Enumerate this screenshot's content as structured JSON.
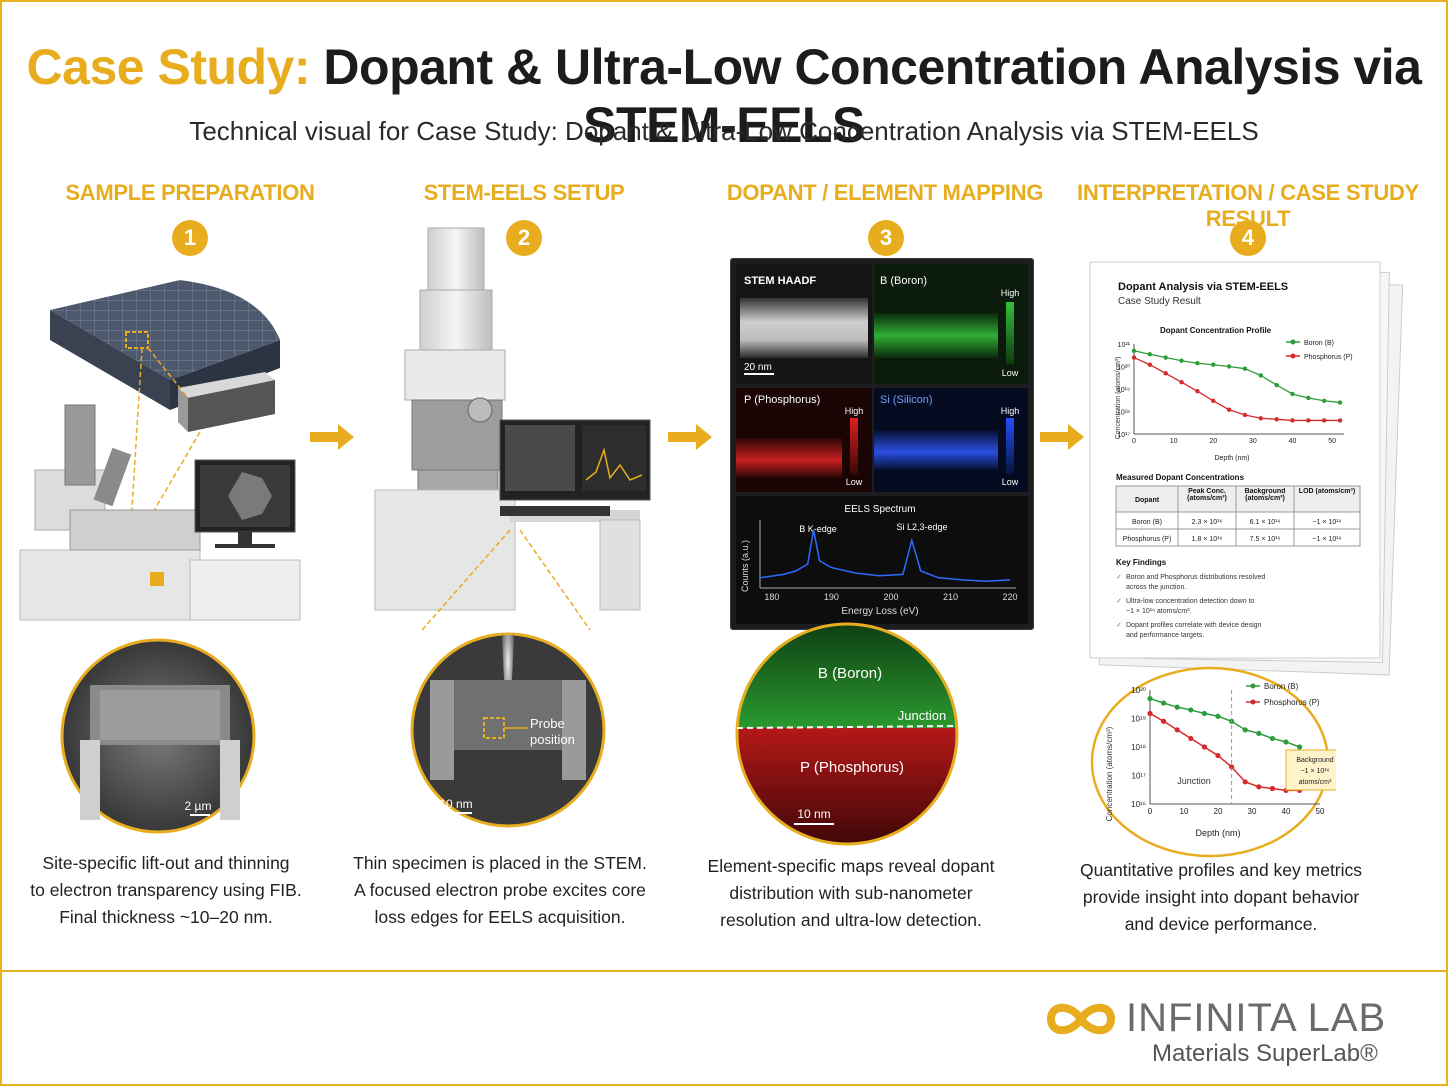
{
  "header": {
    "title_accent": "Case Study:",
    "title_rest": "Dopant & Ultra-Low Concentration Analysis via STEM-EELS",
    "subtitle": "Technical visual for Case Study: Dopant & Ultra-Low Concentration Analysis via STEM-EELS"
  },
  "steps": [
    {
      "number": "1",
      "heading": "SAMPLE PREPARATION",
      "scale_bar": "2 µm",
      "caption": [
        "Site-specific lift-out and thinning",
        "to electron transparency using FIB.",
        "Final thickness ~10–20 nm."
      ]
    },
    {
      "number": "2",
      "heading": "STEM-EELS SETUP",
      "scale_bar": "10 nm",
      "probe_label": [
        "Probe",
        "position"
      ],
      "caption": [
        "Thin specimen is placed in the STEM.",
        "A focused electron probe excites core",
        "loss edges for EELS acquisition."
      ]
    },
    {
      "number": "3",
      "heading": "DOPANT / ELEMENT MAPPING",
      "caption": [
        "Element-specific maps reveal dopant",
        "distribution with sub-nanometer",
        "resolution and ultra-low detection."
      ]
    },
    {
      "number": "4",
      "heading": "INTERPRETATION / CASE STUDY RESULT",
      "caption": [
        "Quantitative profiles and key metrics",
        "provide insight into dopant behavior",
        "and device performance."
      ]
    }
  ],
  "mapping": {
    "haadf_label": "STEM HAADF",
    "haadf_scale": "20 nm",
    "boron_label": "B (Boron)",
    "phos_label": "P (Phosphorus)",
    "silicon_label": "Si (Silicon)",
    "high": "High",
    "low": "Low",
    "spectrum_title": "EELS Spectrum",
    "spectrum_ylabel": "Counts (a.u.)",
    "spectrum_xlabel": "Energy Loss (eV)",
    "peak_b": "B K-edge",
    "peak_si": "Si L2,3-edge",
    "zoom_boron": "B (Boron)",
    "zoom_junction": "Junction",
    "zoom_phos": "P (Phosphorus)",
    "zoom_scale": "10 nm"
  },
  "report": {
    "title": "Dopant Analysis via STEM-EELS",
    "subtitle": "Case Study Result",
    "table_title": "Measured Dopant Concentrations",
    "table_headers": [
      "Dopant",
      "Peak Conc. (atoms/cm³)",
      "Background (atoms/cm³)",
      "LOD (atoms/cm³)"
    ],
    "table_rows": [
      [
        "Boron (B)",
        "2.3 × 10¹⁶",
        "6.1 × 10¹⁶",
        "~1 × 10¹⁶"
      ],
      [
        "Phosphorus (P)",
        "1.8 × 10¹⁶",
        "7.5 × 10¹⁶",
        "~1 × 10¹⁶"
      ]
    ],
    "findings_title": "Key Findings",
    "findings": [
      [
        "Boron and Phosphorus distributions resolved",
        "across the junction."
      ],
      [
        "Ultra-low concentration detection down to",
        "~1 × 10¹⁶ atoms/cm³."
      ],
      [
        "Dopant profiles correlate with device design",
        "and performance targets."
      ]
    ],
    "zoom_background_note": [
      "Background",
      "~1 × 10¹⁶",
      "atoms/cm³"
    ],
    "zoom_junction": "Junction"
  },
  "chart_data": [
    {
      "type": "line",
      "title": "Dopant Concentration Profile",
      "xlabel": "Depth (nm)",
      "ylabel": "Concentration (atoms/cm³)",
      "y_scale": "log",
      "xlim": [
        0,
        53
      ],
      "ylim": [
        1e+17,
        1e+21
      ],
      "xticks": [
        "0",
        "10",
        "20",
        "30",
        "40",
        "50"
      ],
      "yticks": [
        "10¹⁷",
        "10¹⁸",
        "10¹⁹",
        "10²⁰",
        "10²¹"
      ],
      "legend_position": "top-right",
      "series": [
        {
          "name": "Boron (B)",
          "color": "#2e9c3a",
          "x": [
            0,
            4,
            8,
            12,
            16,
            20,
            24,
            28,
            32,
            36,
            40,
            44,
            48,
            52
          ],
          "y": [
            5e+20,
            3.5e+20,
            2.5e+20,
            1.8e+20,
            1.4e+20,
            1.2e+20,
            1e+20,
            8e+19,
            4e+19,
            1.5e+19,
            6e+18,
            4e+18,
            3e+18,
            2.5e+18
          ]
        },
        {
          "name": "Phosphorus (P)",
          "color": "#d42a2a",
          "x": [
            0,
            4,
            8,
            12,
            16,
            20,
            24,
            28,
            32,
            36,
            40,
            44,
            48,
            52
          ],
          "y": [
            2.5e+20,
            1.2e+20,
            5e+19,
            2e+19,
            8e+18,
            3e+18,
            1.2e+18,
            7e+17,
            5e+17,
            4.5e+17,
            4e+17,
            4e+17,
            4e+17,
            4e+17
          ]
        }
      ]
    },
    {
      "type": "line",
      "title": "",
      "xlabel": "Depth (nm)",
      "ylabel": "Concentration (atoms/cm³)",
      "y_scale": "log",
      "xlim": [
        0,
        50
      ],
      "ylim": [
        1e+16,
        1e+20
      ],
      "xticks": [
        "0",
        "10",
        "20",
        "30",
        "40",
        "50"
      ],
      "yticks": [
        "10¹⁶",
        "10¹⁷",
        "10¹⁸",
        "10¹⁹",
        "10²⁰"
      ],
      "legend_position": "top-right",
      "series": [
        {
          "name": "Boron (B)",
          "color": "#2e9c3a",
          "x": [
            0,
            4,
            8,
            12,
            16,
            20,
            24,
            28,
            32,
            36,
            40,
            44
          ],
          "y": [
            5e+19,
            3.5e+19,
            2.5e+19,
            2e+19,
            1.5e+19,
            1.2e+19,
            8e+18,
            4e+18,
            3e+18,
            2e+18,
            1.5e+18,
            1e+18
          ]
        },
        {
          "name": "Phosphorus (P)",
          "color": "#d42a2a",
          "x": [
            0,
            4,
            8,
            12,
            16,
            20,
            24,
            28,
            32,
            36,
            40,
            44
          ],
          "y": [
            1.5e+19,
            8e+18,
            4e+18,
            2e+18,
            1e+18,
            5e+17,
            2e+17,
            6e+16,
            4e+16,
            3.5e+16,
            3e+16,
            3e+16
          ]
        }
      ]
    },
    {
      "type": "line",
      "title": "EELS Spectrum",
      "xlabel": "Energy Loss (eV)",
      "ylabel": "Counts (a.u.)",
      "xlim": [
        178,
        221
      ],
      "xticks": [
        "180",
        "190",
        "200",
        "210",
        "220"
      ],
      "series": [
        {
          "name": "",
          "color": "#2d6bff",
          "x": [
            178,
            182,
            184,
            186,
            187,
            188,
            190,
            194,
            198,
            202,
            203.5,
            205,
            208,
            212,
            216,
            220
          ],
          "y": [
            0.15,
            0.2,
            0.25,
            0.35,
            0.85,
            0.4,
            0.3,
            0.22,
            0.18,
            0.2,
            0.7,
            0.25,
            0.15,
            0.12,
            0.1,
            0.12
          ]
        }
      ]
    }
  ],
  "logo": {
    "name": "INFINITA LAB",
    "tagline": "Materials SuperLab®"
  }
}
